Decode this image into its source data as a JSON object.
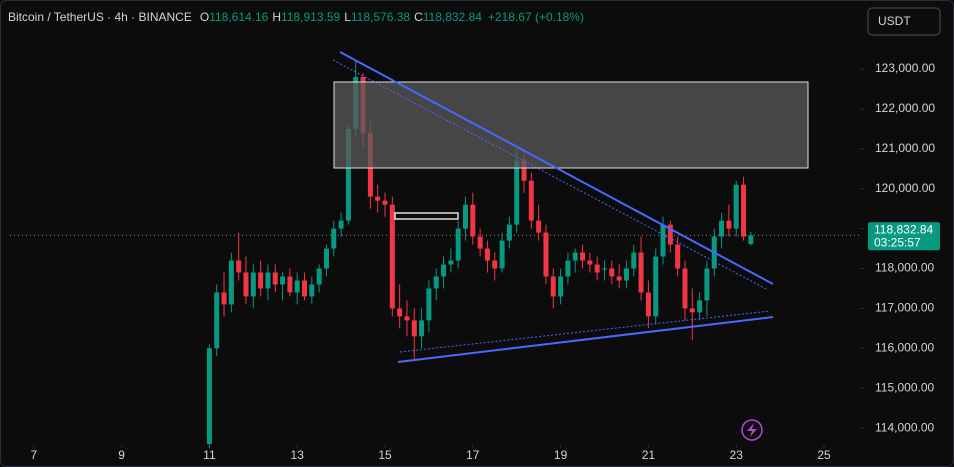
{
  "header": {
    "symbol": "Bitcoin / TetherUS · 4h · BINANCE",
    "ohlc": [
      {
        "key": "O",
        "value": "118,614.16"
      },
      {
        "key": "H",
        "value": "118,913.59"
      },
      {
        "key": "L",
        "value": "118,576.38"
      },
      {
        "key": "C",
        "value": "118,832.84"
      }
    ],
    "change": "+218.67 (+0.18%)"
  },
  "currency_button": "USDT",
  "chart_data": {
    "type": "candlestick",
    "up_color": "#089981",
    "down_color": "#f23645",
    "xlim": [
      6.23,
      25.82
    ],
    "xticks": [
      7,
      9,
      11,
      13,
      15,
      17,
      19,
      21,
      23,
      25
    ],
    "ylim": [
      113576,
      124730
    ],
    "yticks": [
      {
        "value": 114000,
        "label": "114,000.00"
      },
      {
        "value": 115000,
        "label": "115,000.00"
      },
      {
        "value": 116000,
        "label": "116,000.00"
      },
      {
        "value": 117000,
        "label": "117,000.00"
      },
      {
        "value": 118000,
        "label": "118,000.00"
      },
      {
        "value": 119000,
        "label": "119,000.00"
      },
      {
        "value": 120000,
        "label": "120,000.00"
      },
      {
        "value": 121000,
        "label": "121,000.00"
      },
      {
        "value": 122000,
        "label": "122,000.00"
      },
      {
        "value": 123000,
        "label": "123,000.00"
      }
    ],
    "last_price": {
      "value": 118832.84,
      "label": "118,832.84"
    },
    "countdown": "03:25:57",
    "x": [
      11,
      11.167,
      11.333,
      11.5,
      11.667,
      11.833,
      12,
      12.167,
      12.333,
      12.5,
      12.667,
      12.833,
      13,
      13.167,
      13.333,
      13.5,
      13.667,
      13.833,
      14,
      14.167,
      14.333,
      14.5,
      14.667,
      14.833,
      15,
      15.167,
      15.333,
      15.5,
      15.667,
      15.833,
      16,
      16.167,
      16.333,
      16.5,
      16.667,
      16.833,
      17,
      17.167,
      17.333,
      17.5,
      17.667,
      17.833,
      18,
      18.167,
      18.333,
      18.5,
      18.667,
      18.833,
      19,
      19.167,
      19.333,
      19.5,
      19.667,
      19.833,
      20,
      20.167,
      20.333,
      20.5,
      20.667,
      20.833,
      21,
      21.167,
      21.333,
      21.5,
      21.667,
      21.833,
      22,
      22.167,
      22.333,
      22.5,
      22.667,
      22.833,
      23,
      23.167,
      23.333
    ],
    "open": [
      113600,
      116000,
      117400,
      117100,
      118200,
      117900,
      117300,
      117900,
      117500,
      117900,
      117600,
      117800,
      117400,
      117700,
      117300,
      117600,
      118000,
      118500,
      119000,
      119200,
      121500,
      122800,
      121400,
      119800,
      119700,
      119600,
      117000,
      116800,
      116700,
      116300,
      116700,
      117500,
      117800,
      118100,
      118200,
      119000,
      119600,
      118800,
      118500,
      118200,
      118000,
      118700,
      119100,
      120700,
      120200,
      119200,
      118900,
      117800,
      117300,
      117800,
      118200,
      118400,
      118200,
      118100,
      118000,
      118000,
      117800,
      117700,
      118000,
      118400,
      117400,
      116800,
      118300,
      119100,
      118600,
      118000,
      117000,
      116900,
      117200,
      118000,
      118800,
      119200,
      119000,
      120100,
      118614.16
    ],
    "high": [
      116100,
      117600,
      117900,
      118400,
      118900,
      118300,
      118100,
      118200,
      118100,
      118100,
      117900,
      118000,
      117900,
      117900,
      117800,
      118100,
      118600,
      119200,
      119400,
      121600,
      123200,
      122900,
      121700,
      120100,
      119900,
      119800,
      117600,
      117200,
      117000,
      117000,
      117700,
      118000,
      118300,
      118500,
      119200,
      119800,
      119900,
      119000,
      118700,
      118400,
      118900,
      119300,
      121000,
      120900,
      120400,
      119600,
      119100,
      118000,
      118000,
      118400,
      118500,
      118600,
      118400,
      118300,
      118200,
      118200,
      118100,
      118200,
      118600,
      118800,
      117700,
      118500,
      119300,
      119200,
      118800,
      118200,
      117500,
      117400,
      118200,
      119000,
      119400,
      119600,
      120200,
      120300,
      118913.59
    ],
    "low": [
      113500,
      115800,
      116800,
      116900,
      117700,
      117100,
      117000,
      117300,
      117200,
      117400,
      117200,
      117300,
      117100,
      117200,
      117100,
      117400,
      117800,
      118300,
      118800,
      119100,
      121300,
      121000,
      119500,
      119400,
      119300,
      116800,
      116500,
      116300,
      115700,
      116000,
      116400,
      117200,
      117500,
      117900,
      118000,
      118700,
      118600,
      118300,
      117900,
      117700,
      117900,
      118500,
      118900,
      119900,
      119000,
      118700,
      117600,
      117000,
      117100,
      117600,
      117900,
      118000,
      117900,
      117700,
      117700,
      117600,
      117500,
      117500,
      117800,
      117200,
      116500,
      116600,
      118100,
      118400,
      117800,
      116700,
      116200,
      116700,
      116800,
      117800,
      118500,
      118800,
      118800,
      118700,
      118576.38
    ],
    "close": [
      116000,
      117400,
      117100,
      118200,
      117900,
      117300,
      117900,
      117500,
      117900,
      117600,
      117800,
      117400,
      117700,
      117300,
      117600,
      118000,
      118500,
      119000,
      119200,
      121500,
      122800,
      121400,
      119800,
      119700,
      119600,
      117000,
      116800,
      116700,
      116300,
      116700,
      117500,
      117800,
      118100,
      118200,
      119000,
      119600,
      118800,
      118500,
      118200,
      118000,
      118700,
      119100,
      120700,
      120200,
      119200,
      118900,
      117800,
      117300,
      117800,
      118200,
      118400,
      118200,
      118100,
      117900,
      118000,
      117800,
      117700,
      118000,
      118400,
      117400,
      116800,
      118300,
      119100,
      118600,
      118000,
      117000,
      116900,
      117200,
      118000,
      118800,
      119200,
      119000,
      120100,
      118800,
      118832.84
    ]
  }
}
